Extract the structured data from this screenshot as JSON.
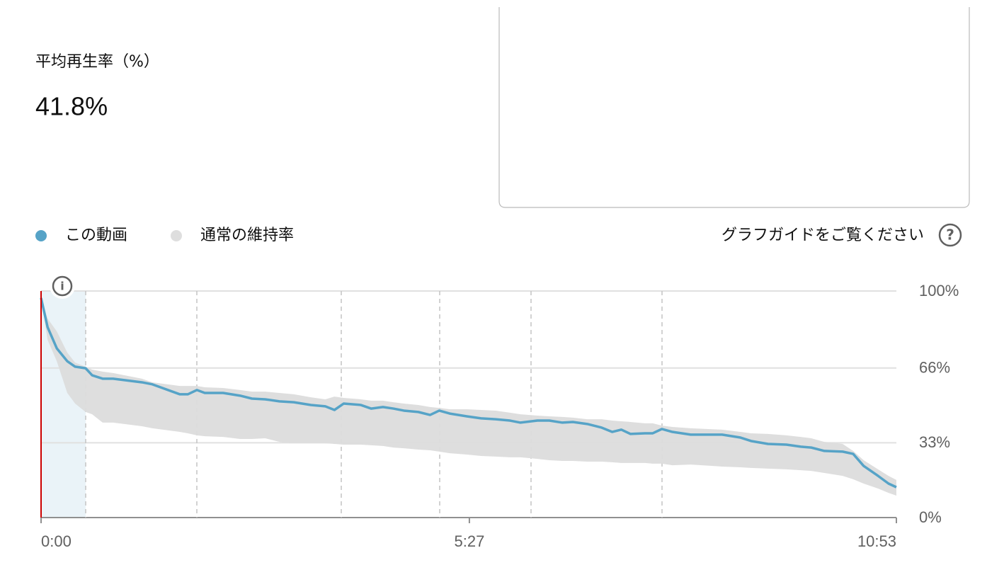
{
  "metric": {
    "label": "平均再生率（%）",
    "value": "41.8%"
  },
  "guide_link": "グラフガイドをご覧ください",
  "chart_data": {
    "type": "line",
    "x": [
      0,
      5,
      12,
      20,
      26,
      34,
      39,
      47,
      55,
      77,
      85,
      106,
      112,
      119,
      125,
      139,
      152,
      161,
      171,
      182,
      193,
      206,
      217,
      224,
      231,
      244,
      252,
      261,
      269,
      277,
      288,
      297,
      304,
      312,
      325,
      336,
      347,
      358,
      366,
      379,
      388,
      398,
      406,
      417,
      428,
      436,
      443,
      450,
      461,
      467,
      474,
      482,
      496,
      520,
      534,
      542,
      555,
      569,
      580,
      588,
      598,
      612,
      620,
      628,
      639,
      647,
      653
    ],
    "series": [
      {
        "name": "この動画",
        "color": "#56a3c7",
        "values": [
          96.9,
          84,
          74.7,
          69,
          66.6,
          65.9,
          62.8,
          61.3,
          61.3,
          59.7,
          58.8,
          54.4,
          54.4,
          56.3,
          55,
          55,
          53.8,
          52.5,
          52.2,
          51.3,
          50.9,
          49.7,
          49.1,
          47.5,
          50.3,
          49.7,
          48.1,
          48.8,
          48.1,
          47.2,
          46.6,
          45.3,
          47.2,
          45.9,
          44.7,
          43.8,
          43.4,
          42.8,
          41.9,
          42.8,
          42.8,
          41.9,
          42.2,
          41.3,
          39.7,
          37.8,
          38.8,
          36.9,
          37.2,
          37.2,
          39.1,
          37.8,
          36.6,
          36.6,
          35.3,
          33.8,
          32.5,
          32.2,
          31.3,
          30.9,
          29.4,
          29.1,
          28.1,
          22.8,
          18.4,
          15,
          13.4
        ]
      },
      {
        "name": "通常の維持率",
        "color": "#dcdcdc",
        "high": [
          96.9,
          87.8,
          82.2,
          72.8,
          68.4,
          66.6,
          65.3,
          64.4,
          63.8,
          61.3,
          59.7,
          58.1,
          58.1,
          58.1,
          57.5,
          57.2,
          56.3,
          55.6,
          55.6,
          55,
          54.4,
          53.1,
          52.2,
          53.4,
          52.8,
          52.2,
          51.6,
          51.6,
          50.9,
          50.3,
          49.7,
          48.8,
          48.4,
          47.8,
          47.8,
          47.5,
          47.2,
          46.3,
          45.6,
          45,
          44.7,
          44.4,
          44.1,
          43.4,
          43.4,
          42.8,
          42.5,
          42.2,
          41.6,
          41.6,
          40.6,
          40,
          39.4,
          38.8,
          37.8,
          37.2,
          36.9,
          36.3,
          35.6,
          35,
          33.4,
          32.5,
          29.4,
          25.3,
          21.3,
          18.4,
          16.6
        ],
        "low": [
          96.9,
          78.4,
          69,
          55,
          50.3,
          46.6,
          45.6,
          41.9,
          41.9,
          40.3,
          39.4,
          37.8,
          37.2,
          36.3,
          35.9,
          35.6,
          34.7,
          34.7,
          35,
          33.4,
          32.8,
          32.8,
          32.8,
          32.5,
          32.2,
          32.2,
          31.9,
          31.6,
          30.9,
          30.6,
          30,
          29.7,
          29.1,
          28.4,
          27.8,
          27.2,
          26.9,
          26.6,
          26.6,
          25.9,
          25.3,
          25,
          25,
          24.7,
          24.7,
          24.4,
          24.1,
          24.1,
          24.1,
          23.8,
          23.8,
          23.1,
          23.4,
          22.5,
          22.2,
          21.9,
          21.6,
          21.3,
          20.9,
          20.6,
          19.7,
          18.4,
          16.9,
          15,
          12.8,
          10.9,
          9.7
        ]
      }
    ],
    "xlim": [
      0,
      653
    ],
    "xticks": [
      {
        "value": 0,
        "label": "0:00"
      },
      {
        "value": 327,
        "label": "5:27"
      },
      {
        "value": 653,
        "label": "10:53"
      }
    ],
    "ylim": [
      0,
      100
    ],
    "yticks": [
      {
        "value": 0,
        "label": "0%"
      },
      {
        "value": 33,
        "label": "33%"
      },
      {
        "value": 66,
        "label": "66%"
      },
      {
        "value": 100,
        "label": "100%"
      }
    ],
    "grid": true
  }
}
